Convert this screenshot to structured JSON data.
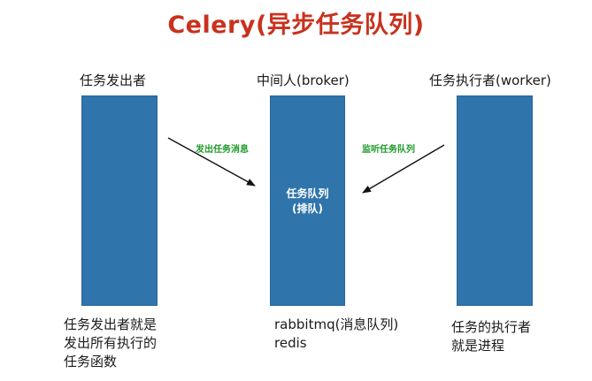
{
  "title": "Celery(异步任务队列)",
  "producer": {
    "label": "任务发出者",
    "desc_lines": [
      "任务发出者就是",
      "发出所有执行的",
      "任务函数"
    ]
  },
  "broker": {
    "label": "中间人(broker)",
    "queue_lines": [
      "任务队列",
      "(排队)"
    ],
    "desc_lines": [
      "rabbitmq(消息队列)",
      "redis"
    ]
  },
  "worker": {
    "label": "任务执行者(worker)",
    "desc_lines": [
      "任务的执行者",
      "就是进程"
    ]
  },
  "arrows": {
    "send_label": "发出任务消息",
    "listen_label": "监听任务队列"
  },
  "colors": {
    "title": "#c8321e",
    "bar": "#2f74ab",
    "arrow_label": "#1e9a2a"
  }
}
